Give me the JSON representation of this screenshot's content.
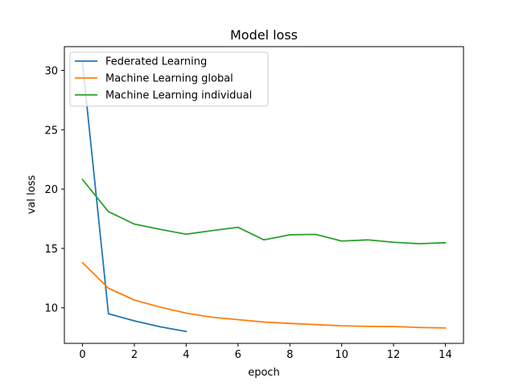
{
  "chart_data": {
    "type": "line",
    "title": "Model loss",
    "xlabel": "epoch",
    "ylabel": "val loss",
    "xlim": [
      -0.7,
      14.7
    ],
    "ylim": [
      7.0,
      32.0
    ],
    "xticks": [
      0,
      2,
      4,
      6,
      8,
      10,
      12,
      14
    ],
    "yticks": [
      10,
      15,
      20,
      25,
      30
    ],
    "grid": false,
    "legend_position": "top-left",
    "series": [
      {
        "name": "Federated Learning",
        "color": "#1f77b4",
        "x": [
          0,
          1,
          2,
          3,
          4
        ],
        "y": [
          30.6,
          9.5,
          8.9,
          8.4,
          8.0
        ]
      },
      {
        "name": "Machine Learning global",
        "color": "#ff7f0e",
        "x": [
          0,
          1,
          2,
          3,
          4,
          5,
          6,
          7,
          8,
          9,
          10,
          11,
          12,
          13,
          14
        ],
        "y": [
          13.8,
          11.65,
          10.65,
          10.05,
          9.55,
          9.2,
          9.0,
          8.8,
          8.68,
          8.58,
          8.48,
          8.43,
          8.42,
          8.34,
          8.3
        ]
      },
      {
        "name": "Machine Learning individual",
        "color": "#2ca02c",
        "x": [
          0,
          1,
          2,
          3,
          4,
          5,
          6,
          7,
          8,
          9,
          10,
          11,
          12,
          13,
          14
        ],
        "y": [
          20.8,
          18.1,
          17.05,
          16.6,
          16.2,
          16.5,
          16.78,
          15.72,
          16.15,
          16.18,
          15.62,
          15.72,
          15.52,
          15.4,
          15.48
        ]
      }
    ]
  }
}
